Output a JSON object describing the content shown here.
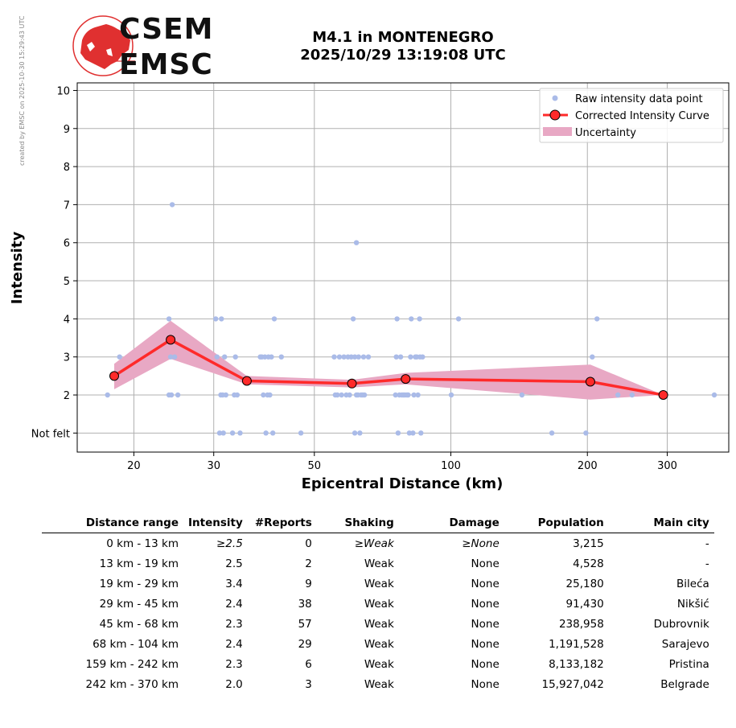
{
  "sidebar_note": "created by EMSC on 2025-10-30 15:29:43 UTC",
  "logo": {
    "top": "CSEM",
    "bottom": "EMSC"
  },
  "title": {
    "line1": "M4.1 in MONTENEGRO",
    "line2": "2025/10/29 13:19:08 UTC"
  },
  "colors": {
    "curve": "#ff2a2a",
    "uncertainty": "#e8a8c4",
    "raw": "#aabbe8",
    "grid": "#b0b0b0"
  },
  "chart_data": {
    "type": "scatter",
    "xlabel": "Epicentral Distance (km)",
    "ylabel": "Intensity",
    "x_scale": "log",
    "xlim": [
      15,
      410
    ],
    "ylim": [
      0.5,
      10.2
    ],
    "x_ticks": [
      20,
      30,
      50,
      100,
      200,
      300
    ],
    "x_tick_labels": [
      "20",
      "30",
      "50",
      "100",
      "200",
      "300"
    ],
    "y_ticks": [
      1,
      2,
      3,
      4,
      5,
      6,
      7,
      8,
      9,
      10
    ],
    "y_tick_labels": [
      "Not felt",
      "2",
      "3",
      "4",
      "5",
      "6",
      "7",
      "8",
      "9",
      "10"
    ],
    "grid": true,
    "legend_position": "top-right",
    "legend": [
      "Raw intensity data point",
      "Corrected Intensity Curve",
      "Uncertainty"
    ],
    "corrected_curve": {
      "x": [
        18.1,
        24.1,
        35.5,
        60.5,
        79.5,
        203,
        294
      ],
      "y": [
        2.5,
        3.45,
        2.37,
        2.3,
        2.42,
        2.35,
        2.0
      ]
    },
    "uncertainty": {
      "x": [
        18.1,
        24.1,
        35.5,
        60.5,
        79.5,
        203,
        294
      ],
      "lower": [
        2.15,
        2.95,
        2.28,
        2.2,
        2.28,
        1.88,
        2.0
      ],
      "upper": [
        2.82,
        3.95,
        2.5,
        2.4,
        2.58,
        2.8,
        2.0
      ]
    },
    "raw_points": [
      [
        17.5,
        2
      ],
      [
        18.6,
        3
      ],
      [
        23.9,
        4
      ],
      [
        24.1,
        3
      ],
      [
        24.3,
        7
      ],
      [
        24.6,
        3
      ],
      [
        23.9,
        2
      ],
      [
        24.2,
        2
      ],
      [
        25.0,
        2
      ],
      [
        30.3,
        4
      ],
      [
        30.5,
        3
      ],
      [
        30.9,
        1
      ],
      [
        31.1,
        2
      ],
      [
        31.4,
        2
      ],
      [
        31.7,
        3
      ],
      [
        31.5,
        1
      ],
      [
        31.2,
        4
      ],
      [
        31.9,
        2
      ],
      [
        33.0,
        1
      ],
      [
        33.3,
        2
      ],
      [
        33.5,
        3
      ],
      [
        33.8,
        2
      ],
      [
        34.3,
        1
      ],
      [
        38.0,
        3
      ],
      [
        38.3,
        3
      ],
      [
        38.6,
        2
      ],
      [
        38.9,
        3
      ],
      [
        39.1,
        1
      ],
      [
        39.4,
        2
      ],
      [
        39.6,
        3
      ],
      [
        39.9,
        2
      ],
      [
        40.2,
        3
      ],
      [
        40.5,
        1
      ],
      [
        40.8,
        4
      ],
      [
        42.3,
        3
      ],
      [
        46.7,
        1
      ],
      [
        55.3,
        3
      ],
      [
        55.6,
        2
      ],
      [
        56.2,
        2
      ],
      [
        56.8,
        3
      ],
      [
        57.4,
        2
      ],
      [
        58.1,
        3
      ],
      [
        58.8,
        2
      ],
      [
        59.3,
        3
      ],
      [
        59.8,
        2
      ],
      [
        60.3,
        3
      ],
      [
        60.9,
        4
      ],
      [
        61.4,
        1
      ],
      [
        61.4,
        3
      ],
      [
        61.9,
        2
      ],
      [
        61.9,
        6
      ],
      [
        62.4,
        2
      ],
      [
        62.6,
        3
      ],
      [
        63.0,
        1
      ],
      [
        63.4,
        2
      ],
      [
        63.9,
        2
      ],
      [
        64.2,
        3
      ],
      [
        64.5,
        2
      ],
      [
        65.8,
        3
      ],
      [
        75.5,
        2
      ],
      [
        75.8,
        3
      ],
      [
        76.1,
        4
      ],
      [
        76.5,
        1
      ],
      [
        77.0,
        2
      ],
      [
        77.5,
        3
      ],
      [
        78.0,
        2
      ],
      [
        78.6,
        2
      ],
      [
        79.2,
        2
      ],
      [
        80.0,
        2
      ],
      [
        80.5,
        2
      ],
      [
        81.0,
        1
      ],
      [
        81.5,
        3
      ],
      [
        81.8,
        4
      ],
      [
        82.5,
        1
      ],
      [
        82.9,
        2
      ],
      [
        83.5,
        3
      ],
      [
        84.1,
        3
      ],
      [
        84.6,
        2
      ],
      [
        85.3,
        4
      ],
      [
        85.5,
        3
      ],
      [
        85.9,
        1
      ],
      [
        86.6,
        3
      ],
      [
        100.2,
        2
      ],
      [
        104.0,
        4
      ],
      [
        143.5,
        2
      ],
      [
        167.0,
        1
      ],
      [
        198.5,
        1
      ],
      [
        205.0,
        3
      ],
      [
        210.0,
        4
      ],
      [
        233.5,
        2
      ],
      [
        251.0,
        2
      ],
      [
        381.0,
        2
      ]
    ]
  },
  "table": {
    "headers": [
      "Distance range",
      "Intensity",
      "#Reports",
      "Shaking",
      "Damage",
      "Population",
      "Main city"
    ],
    "rows": [
      [
        "0 km -   13 km",
        "≥2.5",
        "0",
        "≥Weak",
        "≥None",
        "3,215",
        "-"
      ],
      [
        "13 km -   19 km",
        "2.5",
        "2",
        "Weak",
        "None",
        "4,528",
        "-"
      ],
      [
        "19 km -   29 km",
        "3.4",
        "9",
        "Weak",
        "None",
        "25,180",
        "Bileća"
      ],
      [
        "29 km -   45 km",
        "2.4",
        "38",
        "Weak",
        "None",
        "91,430",
        "Nikšić"
      ],
      [
        "45 km -   68 km",
        "2.3",
        "57",
        "Weak",
        "None",
        "238,958",
        "Dubrovnik"
      ],
      [
        "68 km -  104 km",
        "2.4",
        "29",
        "Weak",
        "None",
        "1,191,528",
        "Sarajevo"
      ],
      [
        "159 km -  242 km",
        "2.3",
        "6",
        "Weak",
        "None",
        "8,133,182",
        "Pristina"
      ],
      [
        "242 km -  370 km",
        "2.0",
        "3",
        "Weak",
        "None",
        "15,927,042",
        "Belgrade"
      ]
    ]
  }
}
